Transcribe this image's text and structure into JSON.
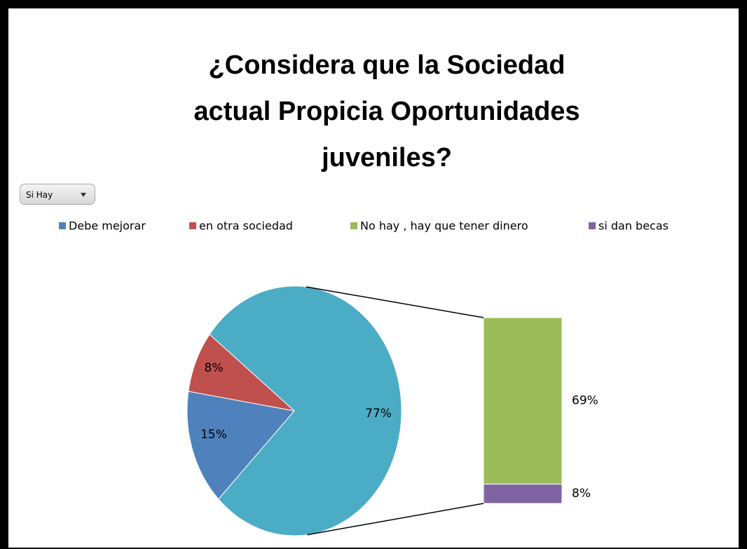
{
  "filter_button": "Si Hay",
  "chart_data": {
    "type": "pie",
    "title": "¿Considera que la Sociedad actual Propicia Oportunidades juveniles?",
    "categories": [
      "Debe mejorar",
      "en otra sociedad",
      null
    ],
    "values": [
      15,
      8,
      77
    ],
    "value_labels": [
      "15%",
      "8%",
      "77%"
    ],
    "colors": [
      "#4f81bd",
      "#c0504d",
      "#4bacc6"
    ],
    "breakout": {
      "categories": [
        "No hay , hay que tener dinero",
        "si dan becas"
      ],
      "values": [
        69,
        8
      ],
      "value_labels": [
        "69%",
        "8%"
      ],
      "colors": [
        "#9bbb59",
        "#8064a2"
      ]
    }
  }
}
